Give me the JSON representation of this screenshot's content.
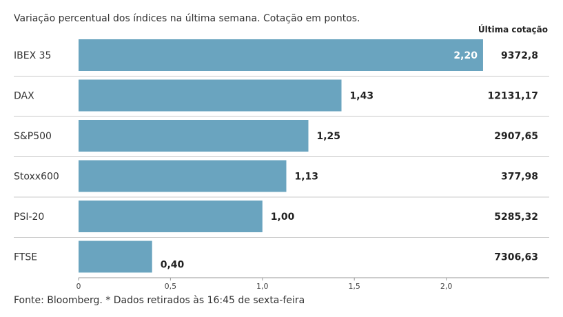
{
  "header": {
    "subtitle": "Variação percentual dos índices na última semana. Cotação em pontos.",
    "column_heading": "Última cotação"
  },
  "footer": {
    "source": "Fonte: Bloomberg.  * Dados retirados às 16:45 de sexta-feira"
  },
  "colors": {
    "bar": "#6aa4bf",
    "divider": "#c8c8c8",
    "axis": "#999999",
    "inside_label": "#ffffff",
    "outside_label": "#222222"
  },
  "chart_data": {
    "type": "bar",
    "orientation": "horizontal",
    "categories": [
      "IBEX 35",
      "DAX",
      "S&P500",
      "Stoxx600",
      "PSI-20",
      "FTSE"
    ],
    "values": [
      2.2,
      1.43,
      1.25,
      1.13,
      1.0,
      0.4
    ],
    "value_labels": [
      "2,20",
      "1,43",
      "1,25",
      "1,13",
      "1,00",
      "0,40"
    ],
    "last_quote": [
      "9372,8",
      "12131,17",
      "2907,65",
      "377,98",
      "5285,32",
      "7306,63"
    ],
    "xlim": [
      0,
      2.5
    ],
    "xticks": [
      0,
      0.5,
      1.0,
      1.5,
      2.0
    ],
    "xtick_labels": [
      "0",
      "0,5",
      "1,0",
      "1,5",
      "2,0"
    ],
    "grid": false,
    "legend": "none"
  }
}
